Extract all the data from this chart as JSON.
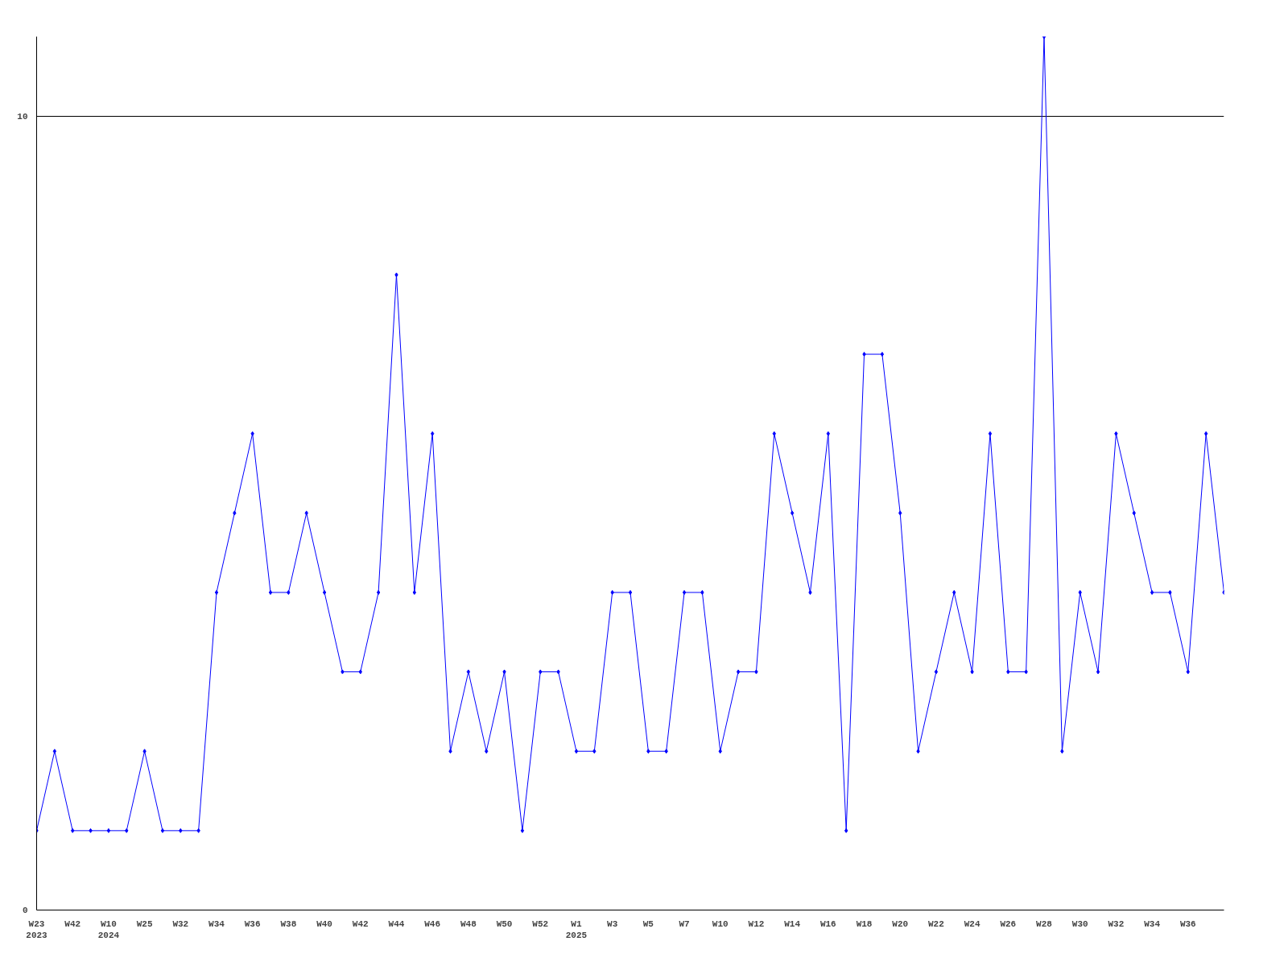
{
  "chart_data": {
    "type": "line",
    "categories": [
      "W23\n2023",
      null,
      "W42",
      null,
      "W10\n2024",
      null,
      "W25",
      null,
      "W32",
      null,
      "W34",
      null,
      "W36",
      null,
      "W38",
      null,
      "W40",
      null,
      "W42",
      null,
      "W44",
      null,
      "W46",
      null,
      "W48",
      null,
      "W50",
      null,
      "W52",
      null,
      "W1\n2025",
      null,
      "W3",
      null,
      "W5",
      null,
      "W7",
      null,
      "W10",
      null,
      "W12",
      null,
      "W14",
      null,
      "W16",
      null,
      "W18",
      null,
      "W20",
      null,
      "W22",
      null,
      "W24",
      null,
      "W26",
      null,
      "W28",
      null,
      "W30",
      null,
      "W32",
      null,
      "W34",
      null,
      "W36",
      null,
      null
    ],
    "series": [
      {
        "color": "#0000ff",
        "values": [
          1,
          2,
          1,
          1,
          1,
          1,
          2,
          1,
          1,
          1,
          4,
          5,
          6,
          4,
          4,
          5,
          4,
          3,
          3,
          4,
          8,
          4,
          6,
          2,
          3,
          2,
          3,
          1,
          3,
          3,
          2,
          2,
          4,
          4,
          2,
          2,
          4,
          4,
          2,
          3,
          3,
          6,
          5,
          4,
          6,
          1,
          7,
          7,
          5,
          2,
          3,
          4,
          3,
          6,
          3,
          3,
          11,
          2,
          4,
          3,
          6,
          5,
          4,
          4,
          3,
          6,
          4
        ]
      }
    ],
    "ylim": [
      0,
      11
    ],
    "yticks": [
      0,
      10
    ],
    "grid": "y",
    "marker": "diamond",
    "line_style": "solid"
  }
}
